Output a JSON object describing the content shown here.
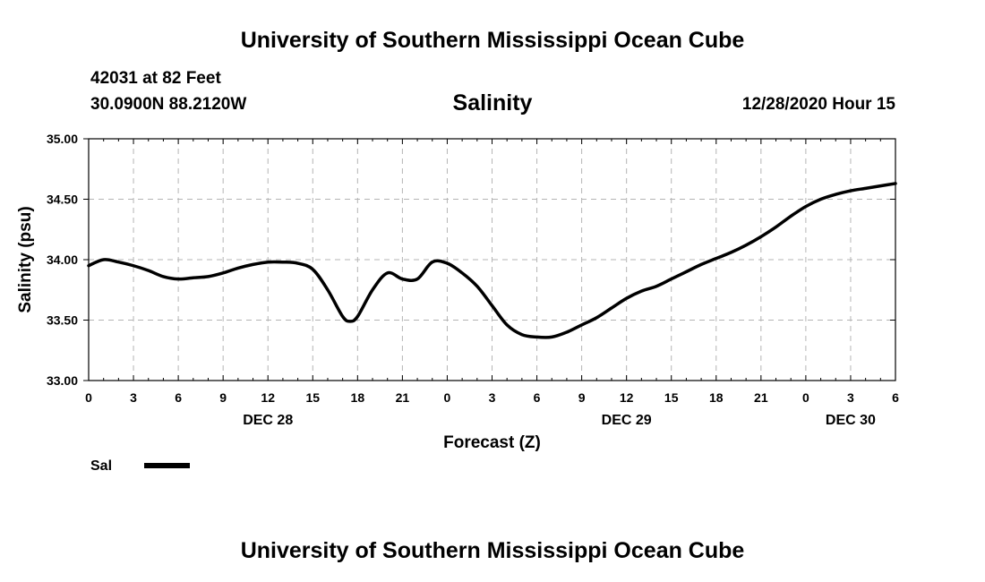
{
  "header": {
    "title": "University of Southern Mississippi Ocean Cube",
    "station": "42031 at 82 Feet",
    "coords": "30.0900N 88.2120W",
    "parameter": "Salinity",
    "valid_time": "12/28/2020 Hour 15"
  },
  "footer": {
    "title": "University of Southern Mississippi Ocean Cube"
  },
  "chart_data": {
    "type": "line",
    "title": "Salinity",
    "xlabel": "Forecast (Z)",
    "ylabel": "Salinity (psu)",
    "xlim": [
      0,
      54
    ],
    "ylim": [
      33.0,
      35.0
    ],
    "grid": true,
    "legend_position": "bottom-left",
    "x_ticks": [
      0,
      3,
      6,
      9,
      12,
      15,
      18,
      21,
      24,
      27,
      30,
      33,
      36,
      39,
      42,
      45,
      48,
      51,
      54
    ],
    "x_tick_labels": [
      "0",
      "3",
      "6",
      "9",
      "12",
      "15",
      "18",
      "21",
      "0",
      "3",
      "6",
      "9",
      "12",
      "15",
      "18",
      "21",
      "0",
      "3",
      "6"
    ],
    "y_ticks": [
      33.0,
      33.5,
      34.0,
      34.5,
      35.0
    ],
    "y_tick_labels": [
      "33.00",
      "33.50",
      "34.00",
      "34.50",
      "35.00"
    ],
    "date_labels": [
      {
        "x": 12,
        "label": "DEC 28"
      },
      {
        "x": 36,
        "label": "DEC 29"
      },
      {
        "x": 51,
        "label": "DEC 30"
      }
    ],
    "series": [
      {
        "name": "Sal",
        "color": "#000000",
        "x": [
          0,
          1,
          2,
          3,
          4,
          5,
          6,
          7,
          8,
          9,
          10,
          11,
          12,
          13,
          14,
          15,
          16,
          17,
          17.5,
          18,
          19,
          20,
          21,
          22,
          23,
          24,
          25,
          26,
          27,
          28,
          29,
          30,
          31,
          32,
          33,
          34,
          35,
          36,
          37,
          38,
          39,
          40,
          41,
          42,
          43,
          44,
          45,
          46,
          47,
          48,
          49,
          50,
          51,
          52,
          53,
          54
        ],
        "values": [
          33.95,
          34.0,
          33.98,
          33.95,
          33.91,
          33.86,
          33.84,
          33.85,
          33.86,
          33.89,
          33.93,
          33.96,
          33.98,
          33.98,
          33.97,
          33.92,
          33.75,
          33.53,
          33.49,
          33.53,
          33.75,
          33.89,
          33.84,
          33.84,
          33.98,
          33.97,
          33.89,
          33.78,
          33.62,
          33.46,
          33.38,
          33.36,
          33.36,
          33.4,
          33.46,
          33.52,
          33.6,
          33.68,
          33.74,
          33.78,
          33.84,
          33.9,
          33.96,
          34.01,
          34.06,
          34.12,
          34.19,
          34.27,
          34.36,
          34.44,
          34.5,
          34.54,
          34.57,
          34.59,
          34.61,
          34.63
        ]
      }
    ]
  }
}
